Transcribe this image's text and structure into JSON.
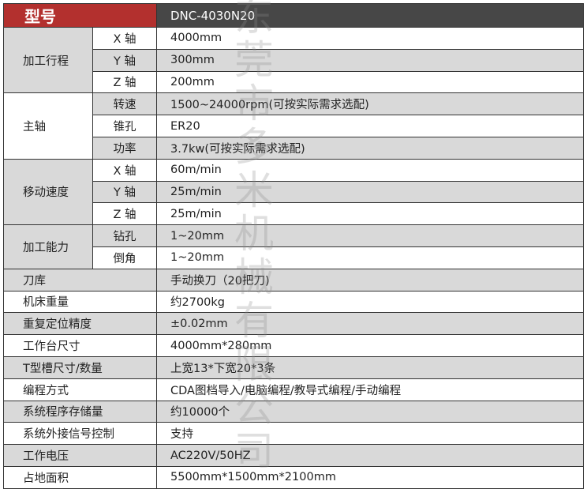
{
  "header": {
    "label": "型号",
    "value": "DNC-4030N20"
  },
  "groups": [
    {
      "label": "加工行程",
      "shaded": true,
      "rows": [
        {
          "label": "X 轴",
          "value": "4000mm"
        },
        {
          "label": "Y 轴",
          "value": "300mm"
        },
        {
          "label": "Z 轴",
          "value": "200mm"
        }
      ]
    },
    {
      "label": "主轴",
      "shaded": false,
      "rows": [
        {
          "label": "转速",
          "value": "1500~24000rpm(可按实际需求选配)"
        },
        {
          "label": "锥孔",
          "value": "ER20"
        },
        {
          "label": "功率",
          "value": "3.7kw(可按实际需求选配)"
        }
      ]
    },
    {
      "label": "移动速度",
      "shaded": true,
      "rows": [
        {
          "label": "X 轴",
          "value": "60m/min"
        },
        {
          "label": "Y 轴",
          "value": "25m/min"
        },
        {
          "label": "Z 轴",
          "value": "25m/min"
        }
      ]
    },
    {
      "label": "加工能力",
      "shaded": true,
      "rows": [
        {
          "label": "钻孔",
          "value": "1~20mm"
        },
        {
          "label": "倒角",
          "value": "1~20mm"
        }
      ]
    }
  ],
  "specs": [
    {
      "label": "刀库",
      "value": "手动换刀（20把刀)"
    },
    {
      "label": "机床重量",
      "value": "约2700kg"
    },
    {
      "label": "重复定位精度",
      "value": "±0.02mm"
    },
    {
      "label": "工作台尺寸",
      "value": "4000mm*280mm"
    },
    {
      "label": "T型槽尺寸/数量",
      "value": "上宽13*下宽20*3条"
    },
    {
      "label": "编程方式",
      "value": "CDA图档导入/电脑编程/教导式编程/手动编程"
    },
    {
      "label": "系统程序存储量",
      "value": "约10000个"
    },
    {
      "label": "系统外接信号控制",
      "value": "支持"
    },
    {
      "label": "工作电压",
      "value": "AC220V/50HZ"
    },
    {
      "label": "占地面积",
      "value": "5500mm*1500mm*2100mm"
    }
  ],
  "watermark": "东莞市多米机械有限公司",
  "colors": {
    "header_label_bg": "#b3302e",
    "header_value_bg": "#474747",
    "shaded_row": "#d9d9d9"
  }
}
